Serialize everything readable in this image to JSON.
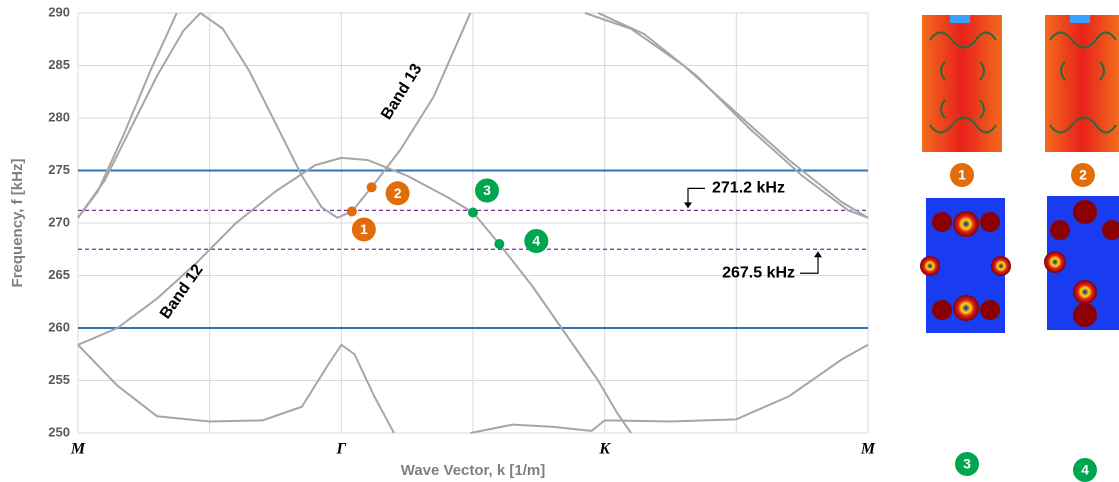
{
  "chart_data": {
    "type": "line",
    "xlabel": "Wave Vector, k [1/m]",
    "ylabel": "Frequency, f [kHz]",
    "xlim": [
      0,
      6
    ],
    "ylim": [
      250,
      290
    ],
    "xticks": [
      0,
      1,
      2,
      3,
      4,
      5,
      6
    ],
    "xtick_labels": [
      {
        "value": 0,
        "label": "M"
      },
      {
        "value": 2,
        "label": "Γ"
      },
      {
        "value": 4,
        "label": "K"
      },
      {
        "value": 6,
        "label": "M"
      }
    ],
    "yticks": [
      250,
      255,
      260,
      265,
      270,
      275,
      280,
      285,
      290
    ],
    "grid": true,
    "series": [
      {
        "color": "#a6a6a6",
        "x": [
          0,
          0.2,
          0.4,
          0.6,
          0.8,
          0.93,
          1.1,
          1.3,
          1.5,
          1.7,
          1.85,
          1.97,
          2.08,
          2.23,
          2.45,
          2.7,
          2.98
        ],
        "values": [
          270.5,
          274,
          279,
          284,
          288.3,
          290,
          288.5,
          284.5,
          279.5,
          274.5,
          271.5,
          270.5,
          271.1,
          273.4,
          277,
          282,
          290
        ]
      },
      {
        "color": "#a6a6a6",
        "x": [
          0,
          0.15,
          0.35,
          0.55,
          0.75
        ],
        "values": [
          270.5,
          273,
          278.5,
          284.5,
          290
        ]
      },
      {
        "color": "#a6a6a6",
        "x": [
          0,
          0.3,
          0.6,
          0.9,
          1.2,
          1.5,
          1.8,
          2.0,
          2.2,
          2.5,
          2.8,
          3.0,
          3.2,
          3.45,
          3.7,
          3.95,
          4.1,
          4.2
        ],
        "values": [
          258.4,
          260,
          262.8,
          266.2,
          270,
          273,
          275.5,
          276.2,
          276,
          274.5,
          272.5,
          271,
          268,
          264,
          259.5,
          255,
          251.8,
          250
        ]
      },
      {
        "color": "#a6a6a6",
        "x": [
          3.85,
          4.2,
          4.6,
          5.0,
          5.4,
          5.8,
          6
        ],
        "values": [
          290,
          288.5,
          285,
          280.5,
          276,
          272,
          270.5
        ]
      },
      {
        "color": "#a6a6a6",
        "x": [
          3.95,
          4.3,
          4.7,
          5.1,
          5.5,
          5.85,
          6
        ],
        "values": [
          290,
          288,
          284,
          279,
          274.5,
          271.2,
          270.5
        ]
      },
      {
        "color": "#a6a6a6",
        "x": [
          0,
          0.3,
          0.6,
          1.0,
          1.4,
          1.7,
          1.9,
          2.0,
          2.1,
          2.25,
          2.4
        ],
        "values": [
          258.4,
          254.5,
          251.6,
          251.1,
          251.2,
          252.5,
          256.5,
          258.4,
          257.5,
          253.5,
          250
        ]
      },
      {
        "color": "#a6a6a6",
        "x": [
          2.98,
          3.3,
          3.6,
          3.9,
          4.0,
          4.5,
          5.0,
          5.4,
          5.8,
          6
        ],
        "values": [
          250,
          250.8,
          250.6,
          250.2,
          251.2,
          251.1,
          251.3,
          253.5,
          257,
          258.4
        ]
      }
    ],
    "hlines": [
      {
        "value": 275,
        "color": "#2e75b6",
        "style": "solid"
      },
      {
        "value": 260,
        "color": "#2e75b6",
        "style": "solid"
      },
      {
        "value": 271.2,
        "color": "#7030a0",
        "style": "dashed",
        "label": "271.2 kHz"
      },
      {
        "value": 267.5,
        "color": "#7030a0",
        "style": "dashed",
        "label": "267.5 kHz"
      }
    ],
    "points": [
      {
        "label": "1",
        "x": 2.08,
        "y": 271.1,
        "color": "#e36c0a"
      },
      {
        "label": "2",
        "x": 2.23,
        "y": 273.4,
        "color": "#e36c0a"
      },
      {
        "label": "3",
        "x": 3.0,
        "y": 271.0,
        "color": "#00a550"
      },
      {
        "label": "4",
        "x": 3.2,
        "y": 268.0,
        "color": "#00a550"
      }
    ],
    "annotations": [
      "Band 13",
      "Band 12"
    ]
  },
  "mode_panel": {
    "labels": [
      "1",
      "2",
      "3",
      "4"
    ]
  }
}
